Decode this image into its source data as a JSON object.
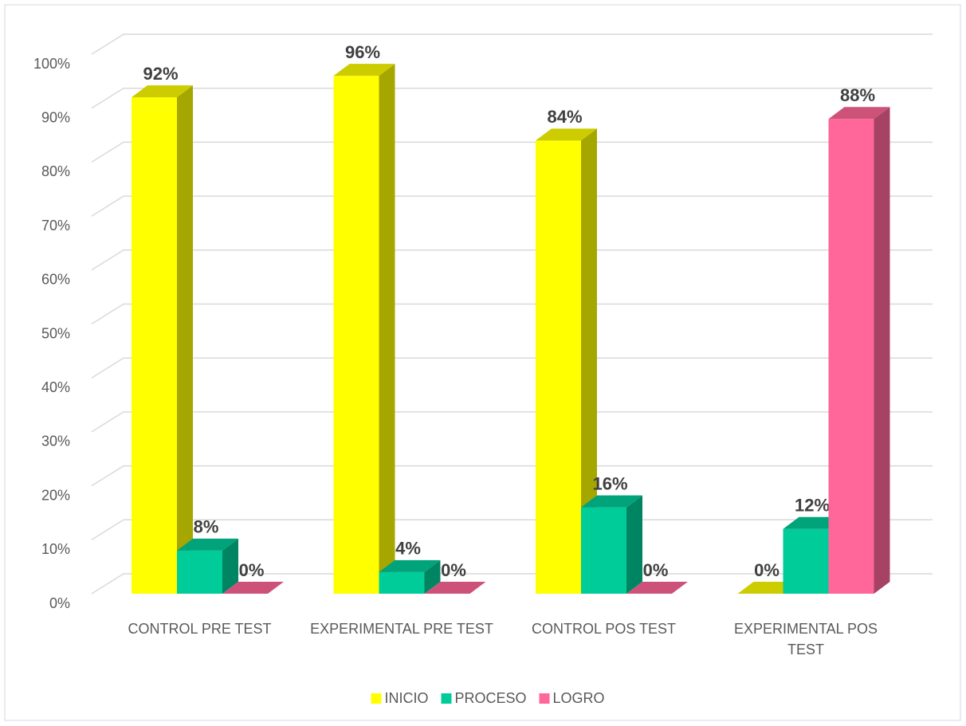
{
  "chart_data": {
    "type": "bar3d",
    "categories": [
      "CONTROL PRE TEST",
      "EXPERIMENTAL PRE TEST",
      "CONTROL POS TEST",
      "EXPERIMENTAL POS TEST"
    ],
    "series": [
      {
        "name": "INICIO",
        "color": "#ffff00",
        "values": [
          92,
          96,
          84,
          0
        ],
        "value_labels": [
          "92%",
          "96%",
          "84%",
          "0%"
        ]
      },
      {
        "name": "PROCESO",
        "color": "#00cc99",
        "values": [
          8,
          4,
          16,
          12
        ],
        "value_labels": [
          "8%",
          "4%",
          "16%",
          "12%"
        ]
      },
      {
        "name": "LOGRO",
        "color": "#ff6699",
        "values": [
          0,
          0,
          0,
          88
        ],
        "value_labels": [
          "0%",
          "0%",
          "0%",
          "88%"
        ]
      }
    ],
    "ylim": [
      0,
      100
    ],
    "yticks": [
      {
        "value": 0,
        "label": "0%"
      },
      {
        "value": 10,
        "label": "10%"
      },
      {
        "value": 20,
        "label": "20%"
      },
      {
        "value": 30,
        "label": "30%"
      },
      {
        "value": 40,
        "label": "40%"
      },
      {
        "value": 50,
        "label": "50%"
      },
      {
        "value": 60,
        "label": "60%"
      },
      {
        "value": 70,
        "label": "70%"
      },
      {
        "value": 80,
        "label": "80%"
      },
      {
        "value": 90,
        "label": "90%"
      },
      {
        "value": 100,
        "label": "100%"
      }
    ],
    "grid": true,
    "legend": "bottom"
  }
}
